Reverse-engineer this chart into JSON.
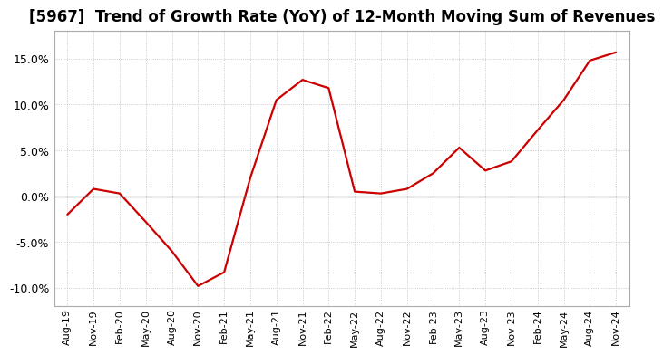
{
  "title": "[5967]  Trend of Growth Rate (YoY) of 12-Month Moving Sum of Revenues",
  "title_fontsize": 12,
  "line_color": "#cc0000",
  "background_color": "#ffffff",
  "plot_bg_color": "#ffffff",
  "grid_color": "#bbbbbb",
  "zero_line_color": "#666666",
  "ylim": [
    -0.12,
    0.18
  ],
  "yticks": [
    -0.1,
    -0.05,
    0.0,
    0.05,
    0.1,
    0.15
  ],
  "values": [
    -0.02,
    0.008,
    0.003,
    -0.028,
    -0.06,
    -0.098,
    -0.083,
    0.02,
    0.105,
    0.127,
    0.118,
    0.005,
    0.003,
    0.008,
    0.025,
    0.053,
    0.028,
    0.038,
    0.072,
    0.105,
    0.148,
    0.157
  ],
  "xtick_labels": [
    "Aug-19",
    "Nov-19",
    "Feb-20",
    "May-20",
    "Aug-20",
    "Nov-20",
    "Feb-21",
    "May-21",
    "Aug-21",
    "Nov-21",
    "Feb-22",
    "May-22",
    "Aug-22",
    "Nov-22",
    "Feb-23",
    "May-23",
    "Aug-23",
    "Nov-23",
    "Feb-24",
    "May-24",
    "Aug-24",
    "Nov-24"
  ]
}
